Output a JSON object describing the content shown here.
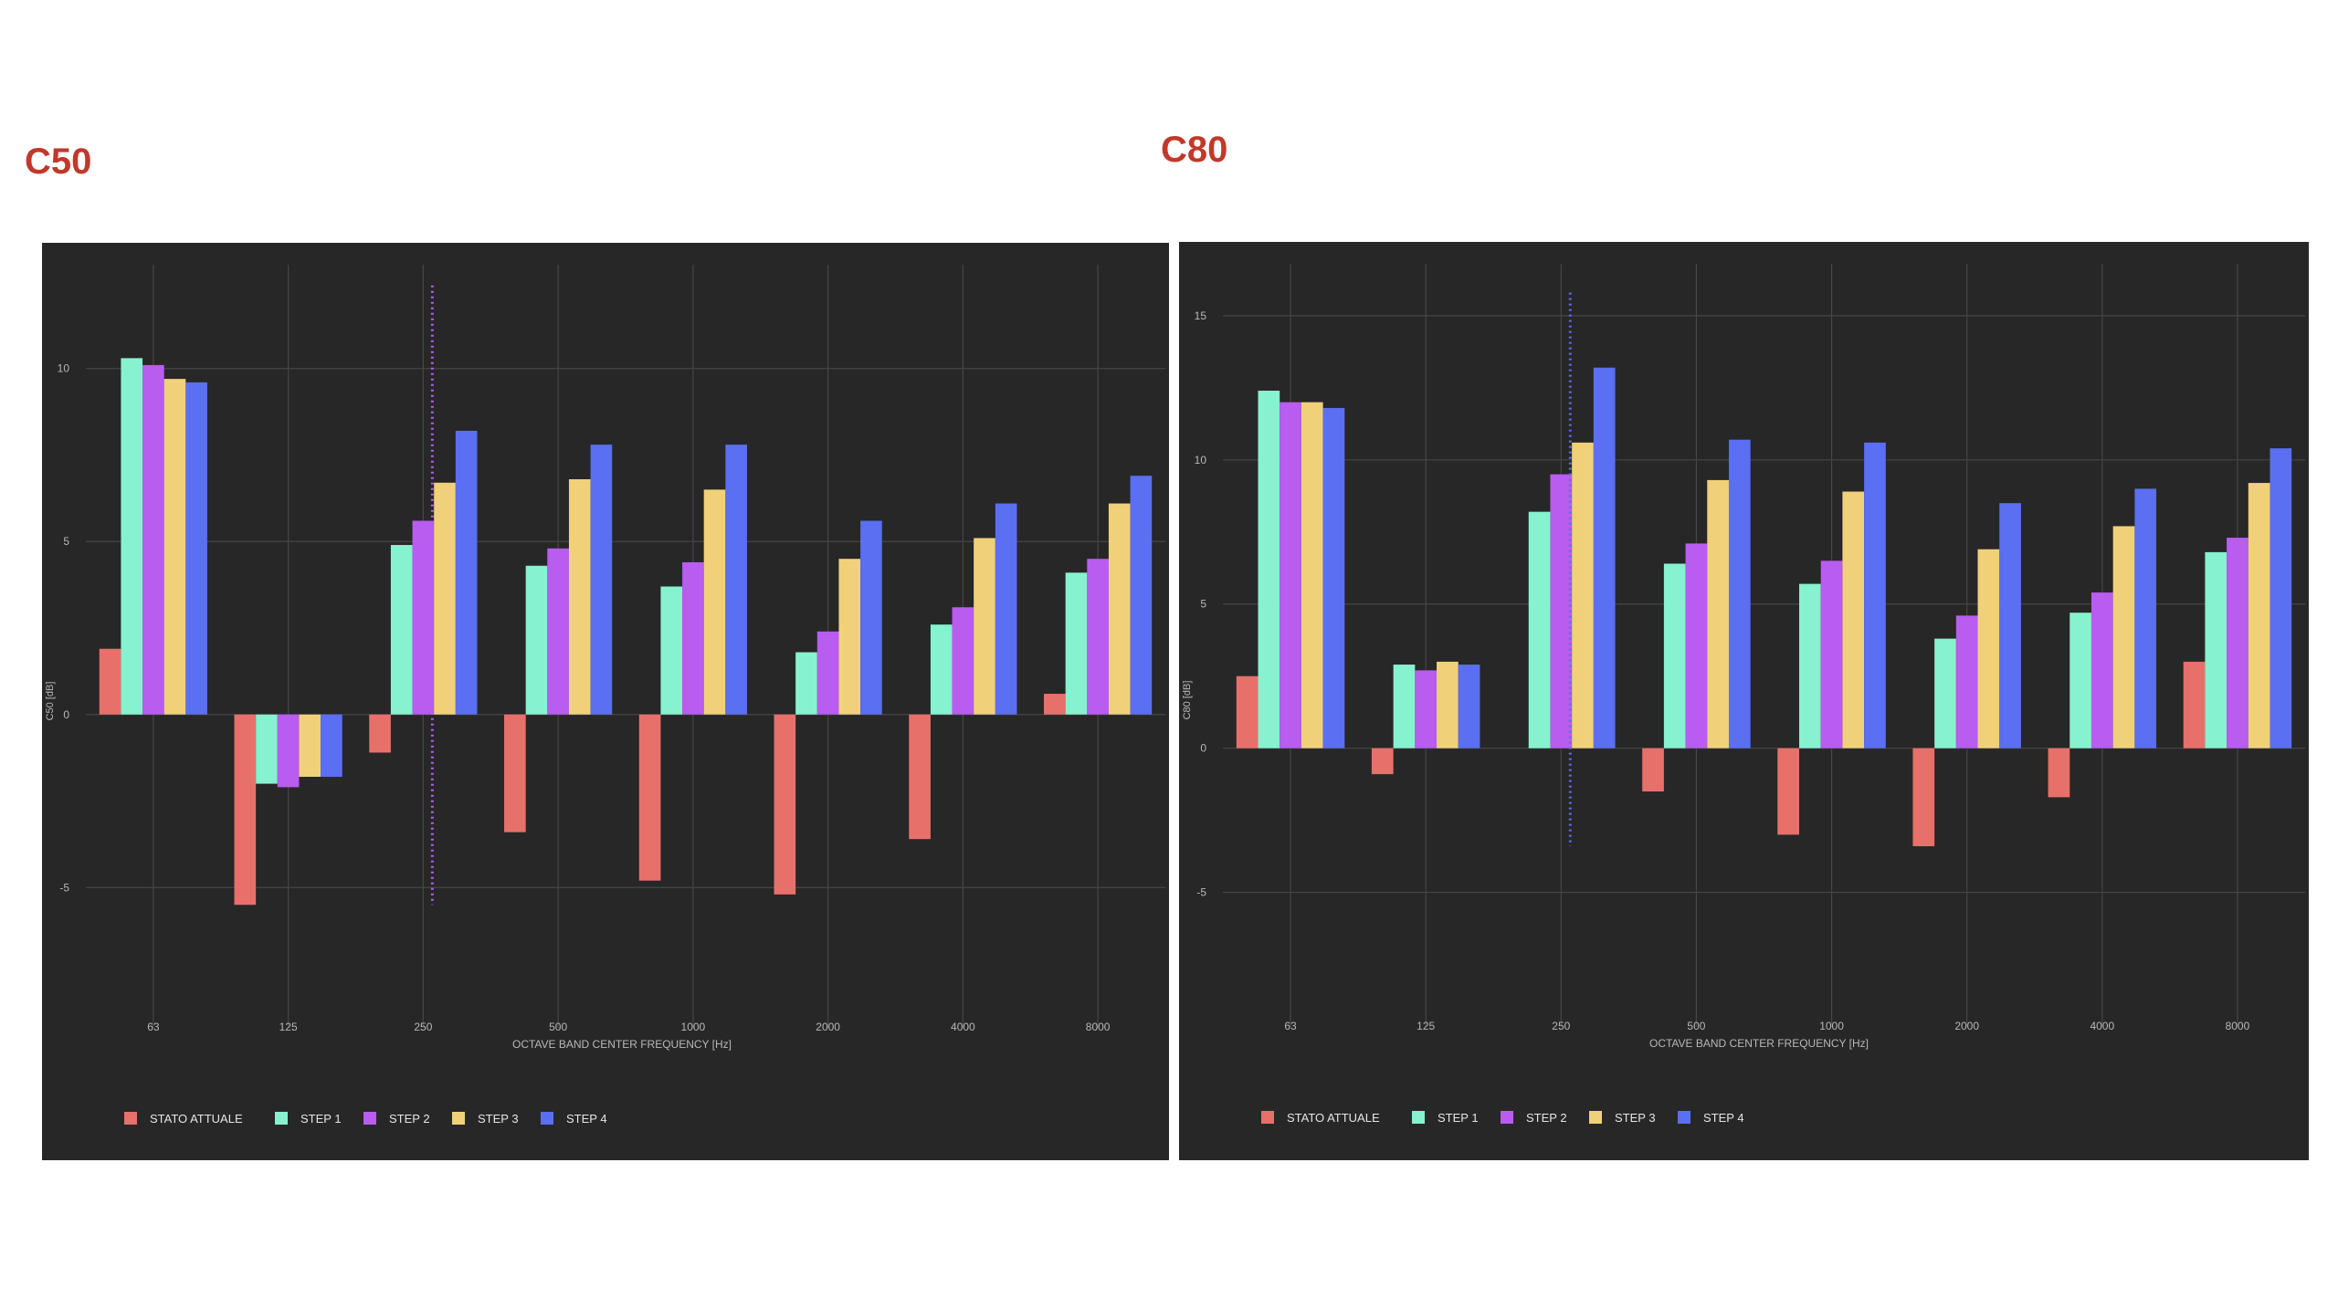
{
  "headings": {
    "left": "C50",
    "right": "C80"
  },
  "chart_data": [
    {
      "type": "bar",
      "title": "C50",
      "ylabel": "C50 [dB]",
      "xlabel": "OCTAVE BAND CENTER FREQUENCY [Hz]",
      "ylim": [
        -8,
        13
      ],
      "yticks": [
        -5,
        0,
        5,
        10
      ],
      "grid": true,
      "legend_position": "bottom-left",
      "categories": [
        "63",
        "125",
        "250",
        "500",
        "1000",
        "2000",
        "4000",
        "8000"
      ],
      "series": [
        {
          "name": "STATO ATTUALE",
          "color": "#e8706a",
          "values": [
            1.9,
            -5.5,
            -1.1,
            -3.4,
            -4.8,
            -5.2,
            -3.6,
            0.6
          ]
        },
        {
          "name": "STEP 1",
          "color": "#86f2cf",
          "values": [
            10.3,
            -2.0,
            4.9,
            4.3,
            3.7,
            1.8,
            2.6,
            4.1
          ]
        },
        {
          "name": "STEP 2",
          "color": "#b95cf0",
          "values": [
            10.1,
            -2.1,
            5.6,
            4.8,
            4.4,
            2.4,
            3.1,
            4.5
          ]
        },
        {
          "name": "STEP 3",
          "color": "#f0d17a",
          "values": [
            9.7,
            -1.8,
            6.7,
            6.8,
            6.5,
            4.5,
            5.1,
            6.1
          ]
        },
        {
          "name": "STEP 4",
          "color": "#5a6ff2",
          "values": [
            9.6,
            -1.8,
            8.2,
            7.8,
            7.8,
            5.6,
            6.1,
            6.9
          ]
        }
      ]
    },
    {
      "type": "bar",
      "title": "C80",
      "ylabel": "C80 [dB]",
      "xlabel": "OCTAVE BAND CENTER FREQUENCY [Hz]",
      "ylim": [
        -8.4,
        16.8
      ],
      "yticks": [
        -5,
        0,
        5,
        10,
        15
      ],
      "grid": true,
      "legend_position": "bottom-left",
      "categories": [
        "63",
        "125",
        "250",
        "500",
        "1000",
        "2000",
        "4000",
        "8000"
      ],
      "series": [
        {
          "name": "STATO ATTUALE",
          "color": "#e8706a",
          "values": [
            2.5,
            -0.9,
            0,
            -1.5,
            -3.0,
            -3.4,
            -1.7,
            3.0
          ]
        },
        {
          "name": "STEP 1",
          "color": "#86f2cf",
          "values": [
            12.4,
            2.9,
            8.2,
            6.4,
            5.7,
            3.8,
            4.7,
            6.8
          ]
        },
        {
          "name": "STEP 2",
          "color": "#b95cf0",
          "values": [
            12.0,
            2.7,
            9.5,
            7.1,
            6.5,
            4.6,
            5.4,
            7.3
          ]
        },
        {
          "name": "STEP 3",
          "color": "#f0d17a",
          "values": [
            12.0,
            3.0,
            10.6,
            9.3,
            8.9,
            6.9,
            7.7,
            9.2
          ]
        },
        {
          "name": "STEP 4",
          "color": "#5a6ff2",
          "values": [
            11.8,
            2.9,
            13.2,
            10.7,
            10.6,
            8.5,
            9.0,
            10.4
          ]
        }
      ]
    }
  ]
}
